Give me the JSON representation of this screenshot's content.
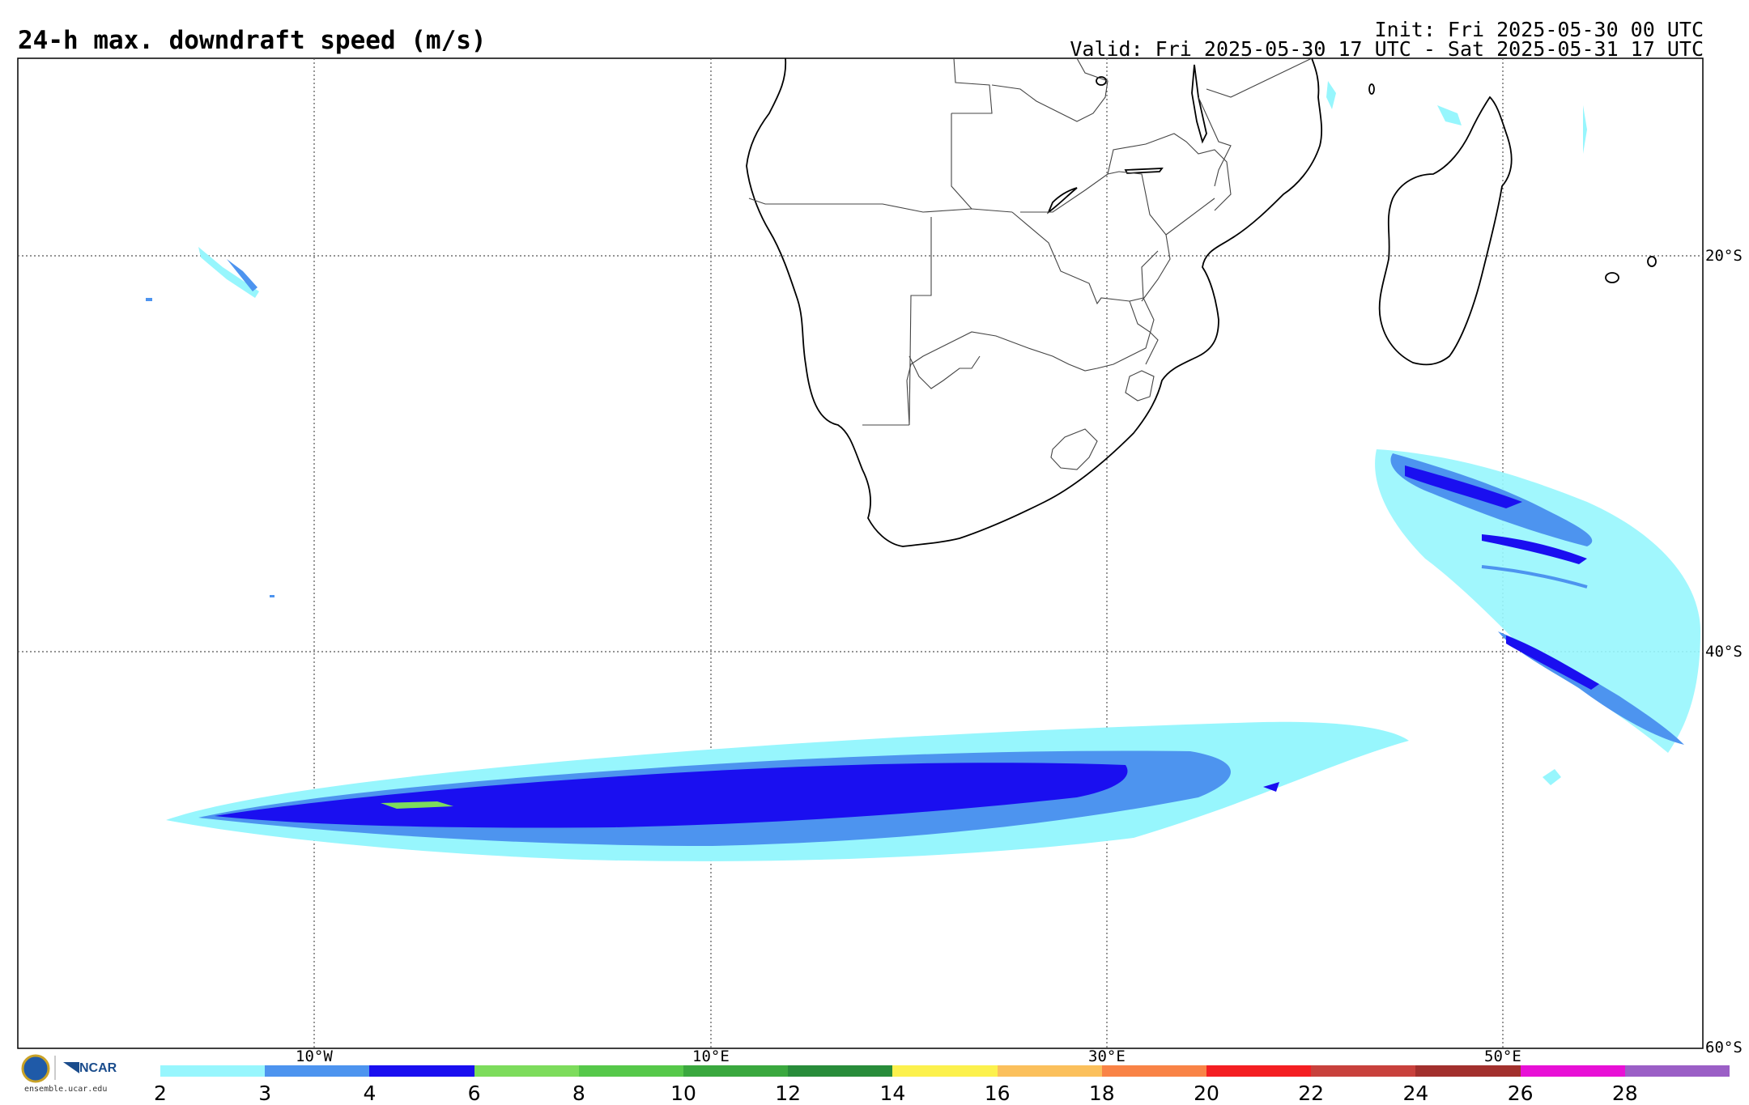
{
  "header": {
    "title": "24-h max. downdraft speed (m/s)",
    "init": "Init: Fri 2025-05-30 00 UTC",
    "valid": "Valid: Fri 2025-05-30 17 UTC - Sat 2025-05-31 17 UTC"
  },
  "map": {
    "lon_labels": [
      "10°W",
      "10°E",
      "30°E",
      "50°E"
    ],
    "lat_labels": [
      "20°S",
      "40°S",
      "60°S"
    ]
  },
  "colorbar": {
    "ticks": [
      "2",
      "3",
      "4",
      "6",
      "8",
      "10",
      "12",
      "14",
      "16",
      "18",
      "20",
      "22",
      "24",
      "26",
      "28"
    ],
    "colors": [
      "#97f6fd",
      "#4d94ef",
      "#1a0ff0",
      "#7ddc5c",
      "#56c84a",
      "#3aa83e",
      "#288c3a",
      "#fcf14d",
      "#fbc05c",
      "#f98346",
      "#f41f22",
      "#c8413c",
      "#a2302d",
      "#e810d6",
      "#9b5fc6"
    ]
  },
  "footer": {
    "url": "ensemble.ucar.edu",
    "logo_text": "NCAR"
  }
}
